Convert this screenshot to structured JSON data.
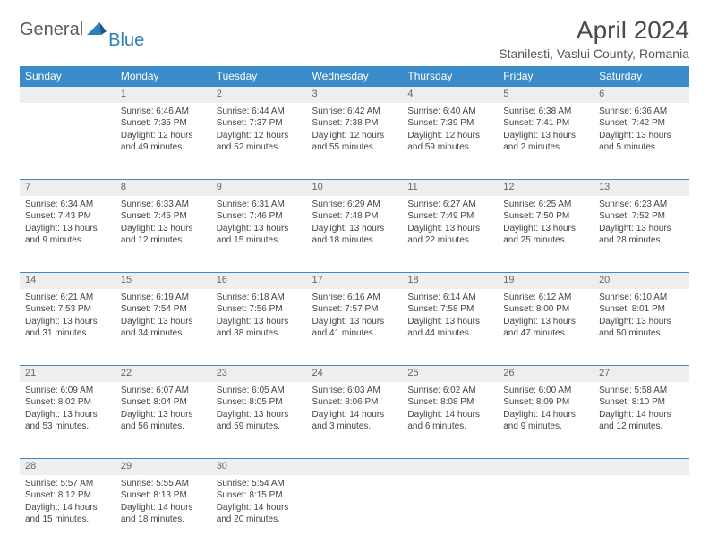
{
  "logo": {
    "text1": "General",
    "text2": "Blue"
  },
  "title": "April 2024",
  "location": "Stanilesti, Vaslui County, Romania",
  "colors": {
    "header_bg": "#3a8bc9",
    "header_text": "#ffffff",
    "daynum_bg": "#eeeeee",
    "page_bg": "#ffffff",
    "logo_gray": "#5a5a5a",
    "logo_blue": "#2c7fb8"
  },
  "weekdays": [
    "Sunday",
    "Monday",
    "Tuesday",
    "Wednesday",
    "Thursday",
    "Friday",
    "Saturday"
  ],
  "weeks": [
    [
      null,
      {
        "n": "1",
        "sr": "6:46 AM",
        "ss": "7:35 PM",
        "dl": "12 hours and 49 minutes."
      },
      {
        "n": "2",
        "sr": "6:44 AM",
        "ss": "7:37 PM",
        "dl": "12 hours and 52 minutes."
      },
      {
        "n": "3",
        "sr": "6:42 AM",
        "ss": "7:38 PM",
        "dl": "12 hours and 55 minutes."
      },
      {
        "n": "4",
        "sr": "6:40 AM",
        "ss": "7:39 PM",
        "dl": "12 hours and 59 minutes."
      },
      {
        "n": "5",
        "sr": "6:38 AM",
        "ss": "7:41 PM",
        "dl": "13 hours and 2 minutes."
      },
      {
        "n": "6",
        "sr": "6:36 AM",
        "ss": "7:42 PM",
        "dl": "13 hours and 5 minutes."
      }
    ],
    [
      {
        "n": "7",
        "sr": "6:34 AM",
        "ss": "7:43 PM",
        "dl": "13 hours and 9 minutes."
      },
      {
        "n": "8",
        "sr": "6:33 AM",
        "ss": "7:45 PM",
        "dl": "13 hours and 12 minutes."
      },
      {
        "n": "9",
        "sr": "6:31 AM",
        "ss": "7:46 PM",
        "dl": "13 hours and 15 minutes."
      },
      {
        "n": "10",
        "sr": "6:29 AM",
        "ss": "7:48 PM",
        "dl": "13 hours and 18 minutes."
      },
      {
        "n": "11",
        "sr": "6:27 AM",
        "ss": "7:49 PM",
        "dl": "13 hours and 22 minutes."
      },
      {
        "n": "12",
        "sr": "6:25 AM",
        "ss": "7:50 PM",
        "dl": "13 hours and 25 minutes."
      },
      {
        "n": "13",
        "sr": "6:23 AM",
        "ss": "7:52 PM",
        "dl": "13 hours and 28 minutes."
      }
    ],
    [
      {
        "n": "14",
        "sr": "6:21 AM",
        "ss": "7:53 PM",
        "dl": "13 hours and 31 minutes."
      },
      {
        "n": "15",
        "sr": "6:19 AM",
        "ss": "7:54 PM",
        "dl": "13 hours and 34 minutes."
      },
      {
        "n": "16",
        "sr": "6:18 AM",
        "ss": "7:56 PM",
        "dl": "13 hours and 38 minutes."
      },
      {
        "n": "17",
        "sr": "6:16 AM",
        "ss": "7:57 PM",
        "dl": "13 hours and 41 minutes."
      },
      {
        "n": "18",
        "sr": "6:14 AM",
        "ss": "7:58 PM",
        "dl": "13 hours and 44 minutes."
      },
      {
        "n": "19",
        "sr": "6:12 AM",
        "ss": "8:00 PM",
        "dl": "13 hours and 47 minutes."
      },
      {
        "n": "20",
        "sr": "6:10 AM",
        "ss": "8:01 PM",
        "dl": "13 hours and 50 minutes."
      }
    ],
    [
      {
        "n": "21",
        "sr": "6:09 AM",
        "ss": "8:02 PM",
        "dl": "13 hours and 53 minutes."
      },
      {
        "n": "22",
        "sr": "6:07 AM",
        "ss": "8:04 PM",
        "dl": "13 hours and 56 minutes."
      },
      {
        "n": "23",
        "sr": "6:05 AM",
        "ss": "8:05 PM",
        "dl": "13 hours and 59 minutes."
      },
      {
        "n": "24",
        "sr": "6:03 AM",
        "ss": "8:06 PM",
        "dl": "14 hours and 3 minutes."
      },
      {
        "n": "25",
        "sr": "6:02 AM",
        "ss": "8:08 PM",
        "dl": "14 hours and 6 minutes."
      },
      {
        "n": "26",
        "sr": "6:00 AM",
        "ss": "8:09 PM",
        "dl": "14 hours and 9 minutes."
      },
      {
        "n": "27",
        "sr": "5:58 AM",
        "ss": "8:10 PM",
        "dl": "14 hours and 12 minutes."
      }
    ],
    [
      {
        "n": "28",
        "sr": "5:57 AM",
        "ss": "8:12 PM",
        "dl": "14 hours and 15 minutes."
      },
      {
        "n": "29",
        "sr": "5:55 AM",
        "ss": "8:13 PM",
        "dl": "14 hours and 18 minutes."
      },
      {
        "n": "30",
        "sr": "5:54 AM",
        "ss": "8:15 PM",
        "dl": "14 hours and 20 minutes."
      },
      null,
      null,
      null,
      null
    ]
  ],
  "labels": {
    "sunrise": "Sunrise:",
    "sunset": "Sunset:",
    "daylight": "Daylight:"
  }
}
